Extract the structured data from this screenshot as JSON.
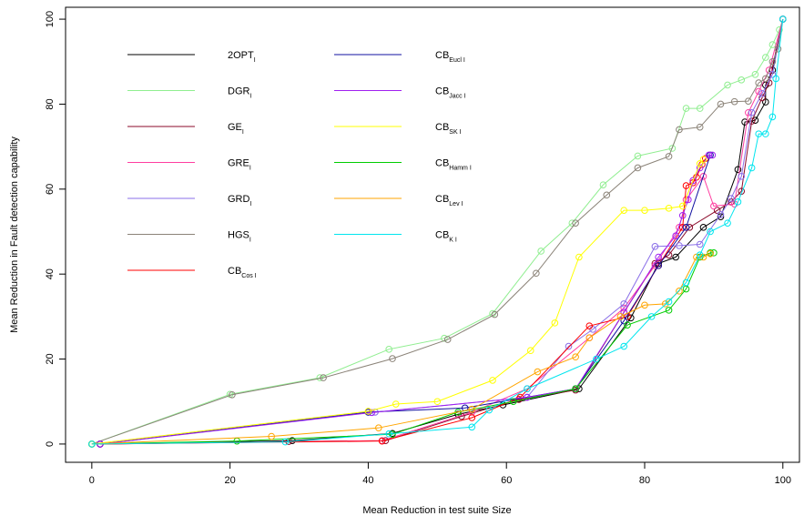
{
  "chart_data": {
    "type": "line",
    "xlabel": "Mean Reduction in test suite Size",
    "ylabel": "Mean Reduction in Fault detection capability",
    "xlim": [
      -3.8,
      102.4
    ],
    "ylim": [
      -4.3,
      102.8
    ],
    "xticks": [
      0,
      20,
      40,
      60,
      80,
      100
    ],
    "yticks": [
      0,
      20,
      40,
      60,
      80,
      100
    ],
    "series": [
      {
        "name": "2OPT",
        "sub": "I",
        "color": "#000000",
        "x": [
          1.2,
          29,
          43.5,
          53,
          59.5,
          70.5,
          78,
          82,
          84.5,
          88.5,
          91,
          93.5,
          94.5,
          96,
          97.5,
          97.5,
          98.5,
          100
        ],
        "values": [
          0,
          0.8,
          2.5,
          7,
          9.2,
          13,
          29.7,
          42.5,
          44,
          51,
          53.5,
          64.6,
          75.8,
          76.2,
          80.5,
          84.5,
          88,
          100
        ]
      },
      {
        "name": "DGR",
        "sub": "I",
        "color": "#90ee90",
        "x": [
          0,
          20,
          33,
          43,
          51,
          58,
          65,
          69.5,
          74,
          79,
          84,
          86,
          88,
          92,
          94,
          96,
          97.5,
          98.5,
          99.5,
          100
        ],
        "values": [
          0,
          11.7,
          15.6,
          22.3,
          24.9,
          30.7,
          45.4,
          52,
          61,
          67.8,
          69.6,
          79,
          79,
          84.5,
          85.7,
          87,
          91,
          94,
          97.5,
          100
        ]
      },
      {
        "name": "GE",
        "sub": "I",
        "color": "#8b0a2a",
        "x": [
          1.2,
          28.5,
          42.5,
          53.5,
          61.8,
          70,
          77,
          81.5,
          83.5,
          86.5,
          90.5,
          92.5,
          94,
          95.5,
          97,
          98,
          100
        ],
        "values": [
          0,
          0.6,
          0.8,
          6.5,
          10.5,
          12.7,
          31,
          42.5,
          44.5,
          51,
          55,
          57,
          59.5,
          76,
          81.5,
          85,
          100
        ]
      },
      {
        "name": "GRE",
        "sub": "I",
        "color": "#ff3ea0",
        "x": [
          1.2,
          42,
          55,
          63,
          72,
          77,
          81.5,
          85,
          86,
          88.5,
          90,
          93,
          95,
          96.5,
          98,
          100
        ],
        "values": [
          0,
          0.8,
          7.5,
          13,
          25,
          32,
          42,
          51,
          57.5,
          63,
          56,
          56.5,
          78,
          83,
          88,
          100
        ]
      },
      {
        "name": "GRD",
        "sub": "I",
        "color": "#8a6fe8",
        "x": [
          1.2,
          40,
          41,
          63,
          69,
          72.5,
          77,
          81.5,
          85,
          88,
          91,
          92.5,
          94,
          95.5,
          97,
          98.5,
          100
        ],
        "values": [
          0,
          7.5,
          7.5,
          11,
          23,
          27,
          33,
          46.5,
          46.7,
          47,
          54,
          57.8,
          63,
          78,
          82.5,
          87,
          100
        ]
      },
      {
        "name": "HGS",
        "sub": "I",
        "color": "#8b8378",
        "x": [
          0,
          20.3,
          33.5,
          43.5,
          51.5,
          58.3,
          64.3,
          70,
          74.5,
          79,
          83.5,
          85,
          88,
          91,
          93,
          95,
          96.5,
          97.5,
          98.5,
          99.3,
          100
        ],
        "values": [
          0,
          11.6,
          15.6,
          20.1,
          24.6,
          30.5,
          40.2,
          52,
          58.6,
          65,
          67.7,
          74,
          74.6,
          80,
          80.6,
          80.7,
          85,
          86,
          90,
          93,
          100
        ]
      },
      {
        "name": "CB",
        "sub": "Cos I",
        "color": "#ff0000",
        "x": [
          1.2,
          42,
          55,
          62,
          72,
          77.5,
          82,
          85.5,
          86,
          87,
          87.5,
          88.3,
          88.8
        ],
        "values": [
          0,
          0.7,
          6.2,
          11,
          27.8,
          30,
          42,
          51,
          60.8,
          61.5,
          62.8,
          65.8,
          67.2
        ]
      },
      {
        "name": "CB",
        "sub": "Eucl I",
        "color": "#1010a0",
        "x": [
          1.2,
          40,
          54,
          70,
          77,
          82,
          86,
          89.5
        ],
        "values": [
          0,
          7.5,
          8.5,
          13,
          29,
          42,
          51,
          68
        ]
      },
      {
        "name": "CB",
        "sub": "Jacc I",
        "color": "#a020f0",
        "x": [
          1.2,
          40.5,
          63,
          70,
          77,
          82,
          84.5,
          85.5,
          86.3,
          87,
          88,
          89.3,
          89.8
        ],
        "values": [
          0,
          7.4,
          11,
          13,
          31,
          44,
          49,
          53.8,
          57.5,
          62,
          65,
          68,
          68
        ]
      },
      {
        "name": "CB",
        "sub": "SK I",
        "color": "#ffff00",
        "x": [
          0,
          40,
          44,
          50,
          58,
          63.5,
          67,
          70.5,
          77,
          80,
          83.5,
          85.5,
          88,
          88.5
        ],
        "values": [
          0,
          7.7,
          9.4,
          10,
          15,
          22,
          28.5,
          44,
          55,
          55,
          55.5,
          56,
          66,
          67
        ]
      },
      {
        "name": "CB",
        "sub": "Hamm I",
        "color": "#00cd00",
        "x": [
          0,
          21,
          43.5,
          53,
          61,
          70,
          77.5,
          83.5,
          86,
          88,
          89.5,
          90
        ],
        "values": [
          0,
          0.7,
          2.3,
          7.5,
          10,
          13,
          28,
          31.5,
          36.5,
          44,
          45,
          45
        ]
      },
      {
        "name": "CB",
        "sub": "Lev I",
        "color": "#ffa500",
        "x": [
          0,
          26,
          41.5,
          55,
          64.5,
          70,
          72,
          76.5,
          80,
          83,
          85,
          87.5,
          88.5,
          89.5
        ],
        "values": [
          0,
          1.8,
          3.8,
          8.2,
          17,
          20.5,
          25,
          30,
          32.7,
          33,
          36,
          44,
          44,
          44.8
        ]
      },
      {
        "name": "CB",
        "sub": "K I",
        "color": "#00e5ee",
        "x": [
          0,
          28,
          43,
          55,
          57.5,
          63,
          73,
          77,
          81,
          83.5,
          86,
          88,
          89.5,
          92,
          93.5,
          95.5,
          96.5,
          97.5,
          98.5,
          99,
          100
        ],
        "values": [
          0,
          0.5,
          2.4,
          4,
          8,
          13,
          20,
          23,
          30,
          33.5,
          38,
          44.5,
          50,
          52,
          57,
          65,
          73,
          73,
          77,
          86,
          100
        ]
      }
    ]
  }
}
